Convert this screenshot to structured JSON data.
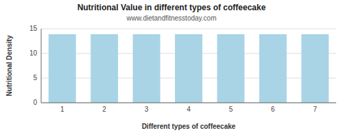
{
  "chart_data": {
    "type": "bar",
    "title": "Nutritional Value in different types of coffeecake",
    "subtitle": "www.dietandfitnesstoday.com",
    "x_label": "Different types of coffeecake",
    "y_label": "Nutritional Density",
    "categories": [
      1,
      2,
      3,
      4,
      5,
      6,
      7
    ],
    "values": [
      13.9,
      13.9,
      13.9,
      13.9,
      13.9,
      13.9,
      13.9
    ],
    "color": "#a8d4e6",
    "ylim": [
      0,
      15
    ],
    "yticks": [
      0,
      5,
      10,
      15
    ],
    "grid": true
  }
}
